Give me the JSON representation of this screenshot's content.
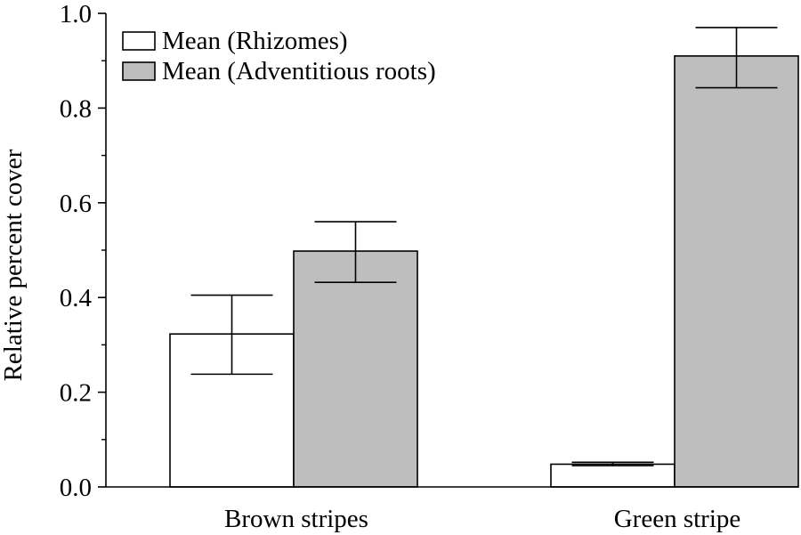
{
  "chart_data": {
    "type": "bar",
    "title": "",
    "xlabel": "",
    "ylabel": "Relative percent cover",
    "categories": [
      "Brown stripes",
      "Green stripe"
    ],
    "series": [
      {
        "name": "Mean (Rhizomes)",
        "color": "#ffffff",
        "values": [
          0.323,
          0.048
        ],
        "error_low": [
          0.238,
          0.045
        ],
        "error_high": [
          0.405,
          0.052
        ]
      },
      {
        "name": "Mean (Adventitious roots)",
        "color": "#bebebe",
        "values": [
          0.498,
          0.91
        ],
        "error_low": [
          0.432,
          0.843
        ],
        "error_high": [
          0.56,
          0.97
        ]
      }
    ],
    "ylim": [
      0.0,
      1.0
    ],
    "yticks": [
      "0.0",
      "0.2",
      "0.4",
      "0.6",
      "0.8",
      "1.0"
    ],
    "ytick_values": [
      0.0,
      0.2,
      0.4,
      0.6,
      0.8,
      1.0
    ],
    "minor_ytick_step": 0.1,
    "grid": false,
    "legend_position": "top-left"
  }
}
